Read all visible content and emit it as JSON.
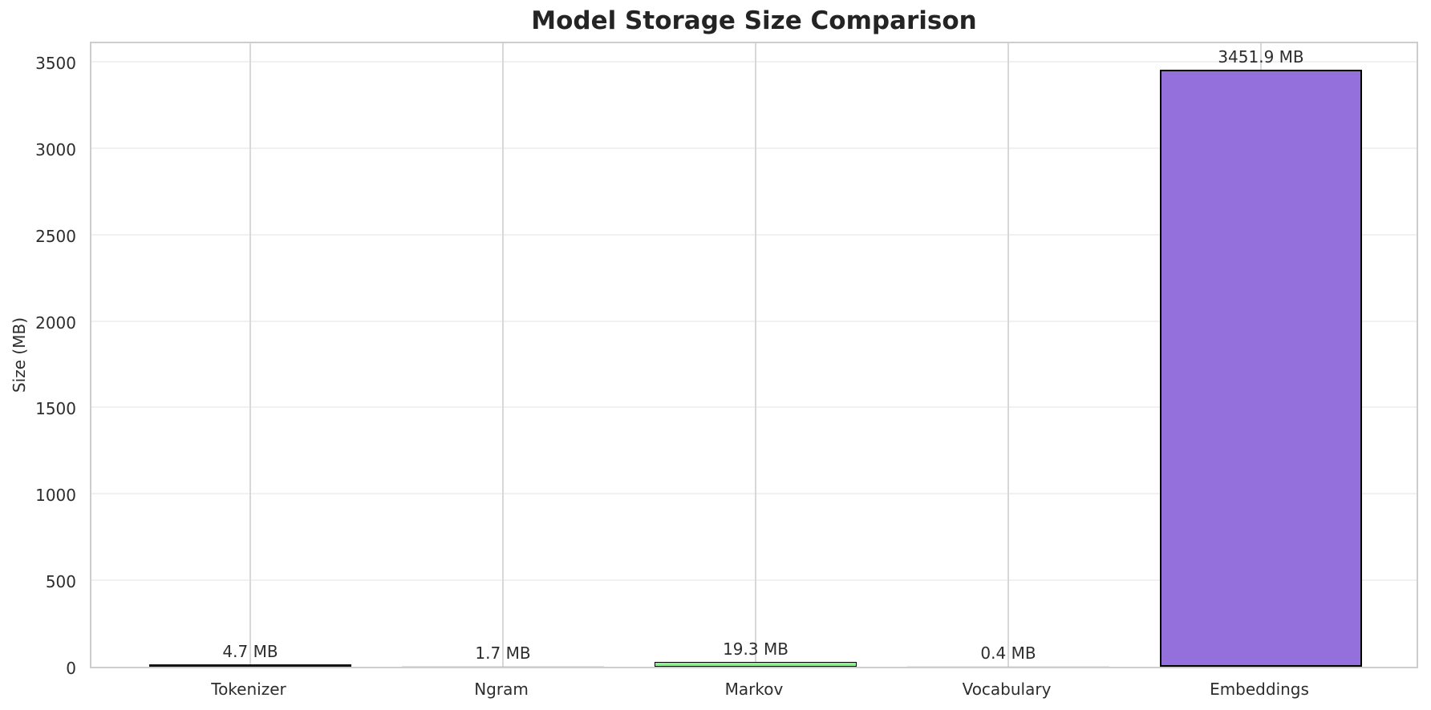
{
  "chart_data": {
    "type": "bar",
    "title": "Model Storage Size Comparison",
    "xlabel": "",
    "ylabel": "Size (MB)",
    "categories": [
      "Tokenizer",
      "Ngram",
      "Markov",
      "Vocabulary",
      "Embeddings"
    ],
    "values": [
      4.7,
      1.7,
      19.3,
      0.4,
      3451.9
    ],
    "bar_labels": [
      "4.7 MB",
      "1.7 MB",
      "19.3 MB",
      "0.4 MB",
      "3451.9 MB"
    ],
    "bar_colors": [
      "#87CEEB",
      "#F08080",
      "#90EE90",
      "#FFD700",
      "#9370DB"
    ],
    "bar_edge_color": "#000000",
    "yticks": [
      0,
      500,
      1000,
      1500,
      2000,
      2500,
      3000,
      3500
    ],
    "ylim": [
      0,
      3625
    ],
    "grid": true,
    "gridline_color_h": "#f1f1f1",
    "gridline_color_v": "#d8d8d8",
    "legend_position": "none",
    "background_color": "#ffffff"
  }
}
